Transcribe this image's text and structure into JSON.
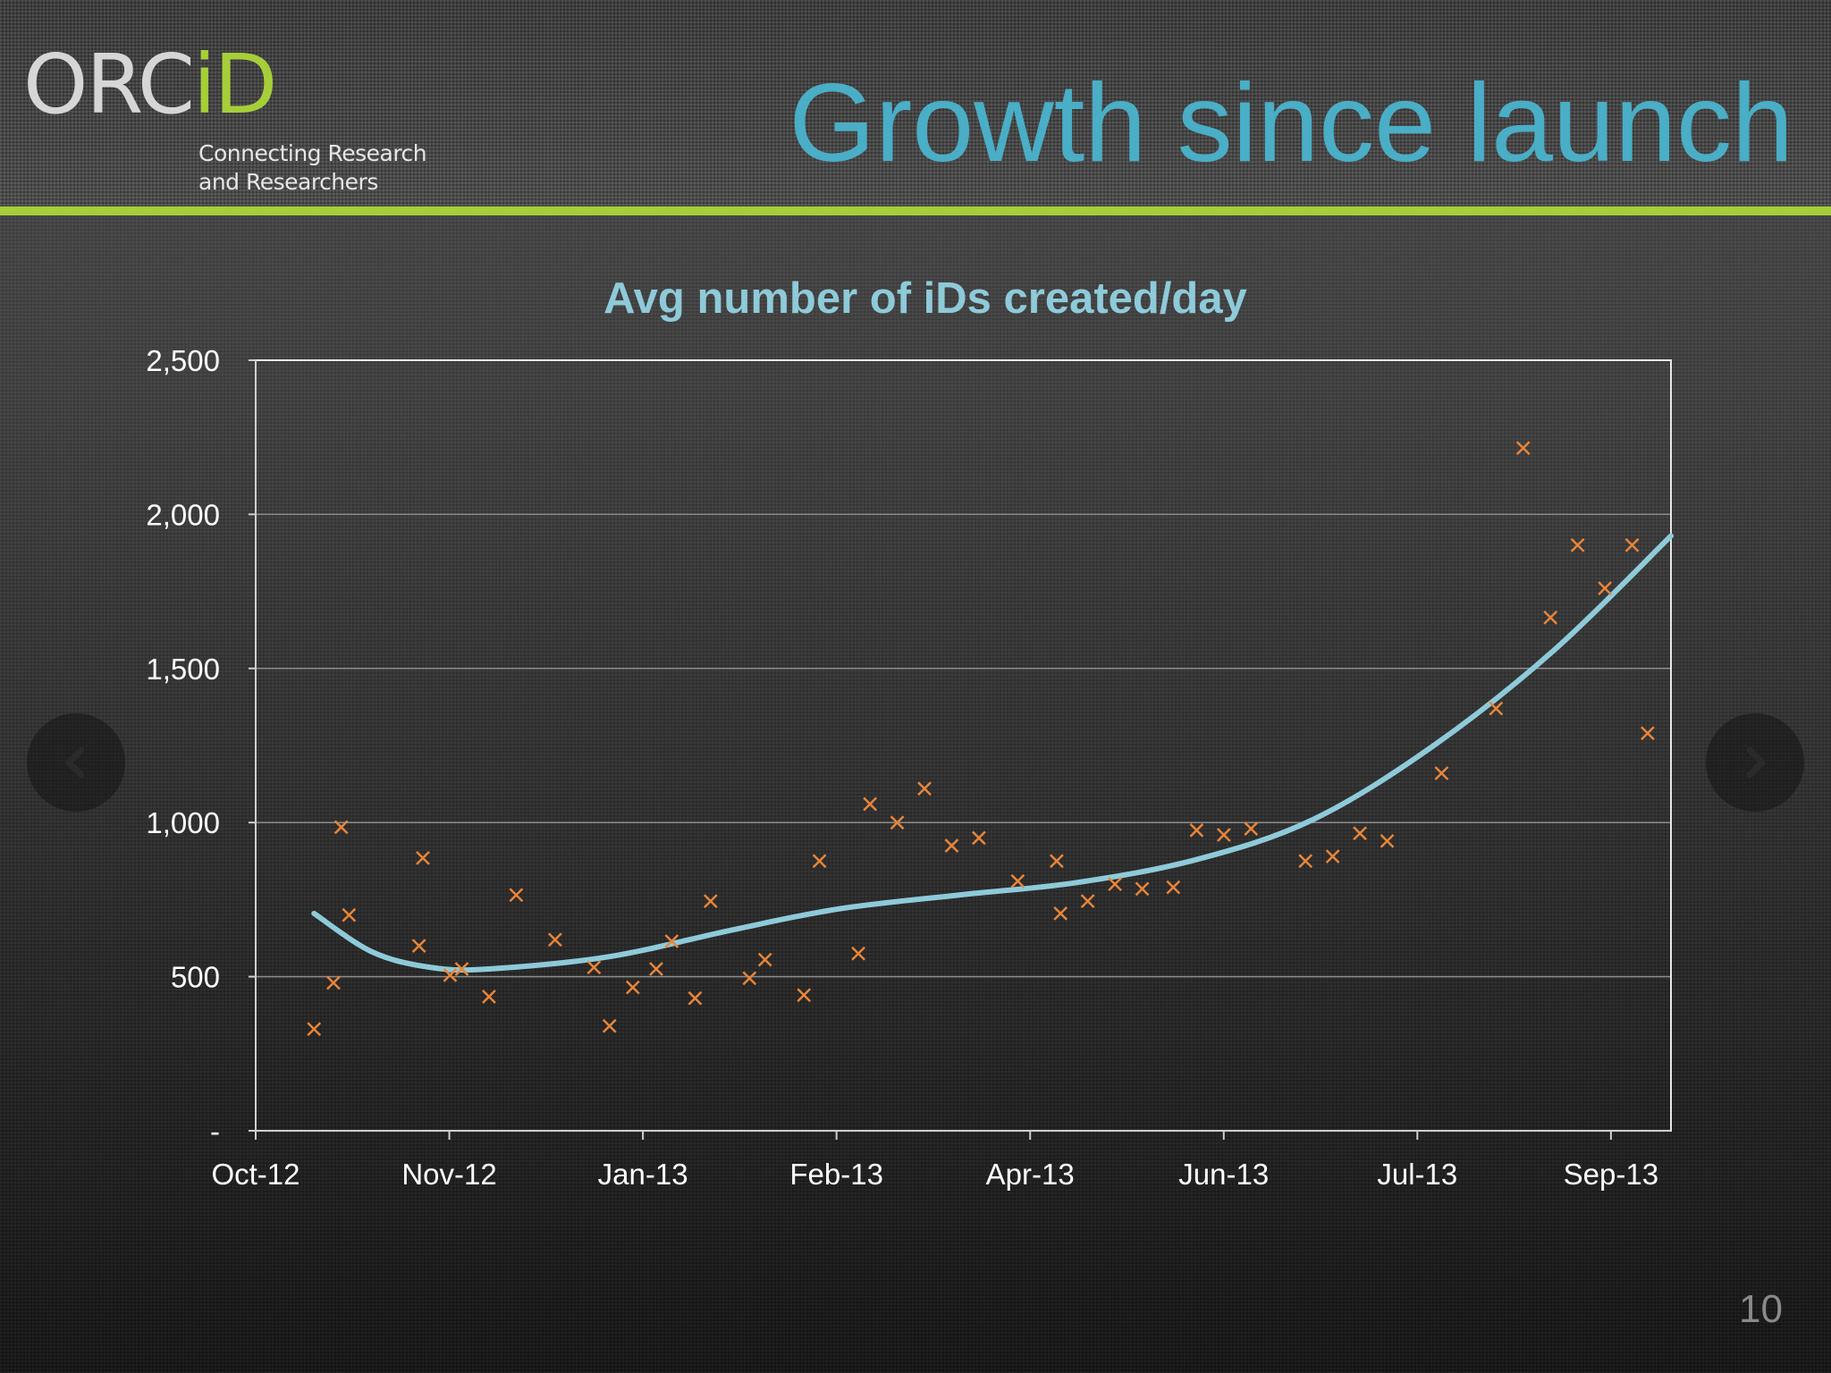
{
  "slide": {
    "title": "Growth since launch",
    "page_number": "10"
  },
  "logo": {
    "wordmark_orc": "ORC",
    "wordmark_id": "iD",
    "tagline_line1": "Connecting Research",
    "tagline_line2": "and Researchers"
  },
  "colors": {
    "title": "#49aec6",
    "accent_green": "#a6ce39",
    "trendline": "#8ecad9",
    "markers": "#e8853a"
  },
  "navigation": {
    "prev_icon": "chevron-left-icon",
    "next_icon": "chevron-right-icon"
  },
  "chart_data": {
    "type": "scatter",
    "title": "Avg number of iDs created/day",
    "xlabel": "",
    "ylabel": "",
    "x_ticks": [
      "Oct-12",
      "Nov-12",
      "Jan-13",
      "Feb-13",
      "Apr-13",
      "Jun-13",
      "Jul-13",
      "Sep-13"
    ],
    "xlim": [
      "2012-10-01",
      "2013-09-30"
    ],
    "ylim": [
      0,
      2500
    ],
    "y_ticks": [
      {
        "value": 0,
        "label": "-"
      },
      {
        "value": 500,
        "label": "500"
      },
      {
        "value": 1000,
        "label": "1,000"
      },
      {
        "value": 1500,
        "label": "1,500"
      },
      {
        "value": 2000,
        "label": "2,000"
      },
      {
        "value": 2500,
        "label": "2,500"
      }
    ],
    "grid": true,
    "legend": "none",
    "series": [
      {
        "marker": "x",
        "points": [
          {
            "x": "2012-10-16",
            "y": 330
          },
          {
            "x": "2012-10-21",
            "y": 480
          },
          {
            "x": "2012-10-23",
            "y": 985
          },
          {
            "x": "2012-10-25",
            "y": 700
          },
          {
            "x": "2012-11-12",
            "y": 600
          },
          {
            "x": "2012-11-13",
            "y": 885
          },
          {
            "x": "2012-11-20",
            "y": 505
          },
          {
            "x": "2012-11-23",
            "y": 525
          },
          {
            "x": "2012-11-30",
            "y": 435
          },
          {
            "x": "2012-12-07",
            "y": 765
          },
          {
            "x": "2012-12-17",
            "y": 620
          },
          {
            "x": "2012-12-27",
            "y": 530
          },
          {
            "x": "2012-12-31",
            "y": 340
          },
          {
            "x": "2013-01-06",
            "y": 465
          },
          {
            "x": "2013-01-12",
            "y": 525
          },
          {
            "x": "2013-01-16",
            "y": 615
          },
          {
            "x": "2013-01-22",
            "y": 430
          },
          {
            "x": "2013-01-26",
            "y": 745
          },
          {
            "x": "2013-02-05",
            "y": 495
          },
          {
            "x": "2013-02-09",
            "y": 555
          },
          {
            "x": "2013-02-19",
            "y": 440
          },
          {
            "x": "2013-02-23",
            "y": 875
          },
          {
            "x": "2013-03-05",
            "y": 575
          },
          {
            "x": "2013-03-08",
            "y": 1060
          },
          {
            "x": "2013-03-15",
            "y": 1000
          },
          {
            "x": "2013-03-22",
            "y": 1110
          },
          {
            "x": "2013-03-29",
            "y": 925
          },
          {
            "x": "2013-04-05",
            "y": 950
          },
          {
            "x": "2013-04-15",
            "y": 810
          },
          {
            "x": "2013-04-25",
            "y": 875
          },
          {
            "x": "2013-04-26",
            "y": 705
          },
          {
            "x": "2013-05-03",
            "y": 745
          },
          {
            "x": "2013-05-10",
            "y": 800
          },
          {
            "x": "2013-05-17",
            "y": 785
          },
          {
            "x": "2013-05-25",
            "y": 790
          },
          {
            "x": "2013-05-31",
            "y": 975
          },
          {
            "x": "2013-06-07",
            "y": 960
          },
          {
            "x": "2013-06-14",
            "y": 980
          },
          {
            "x": "2013-06-28",
            "y": 875
          },
          {
            "x": "2013-07-05",
            "y": 890
          },
          {
            "x": "2013-07-12",
            "y": 965
          },
          {
            "x": "2013-07-19",
            "y": 940
          },
          {
            "x": "2013-08-02",
            "y": 1160
          },
          {
            "x": "2013-08-16",
            "y": 1370
          },
          {
            "x": "2013-08-23",
            "y": 2215
          },
          {
            "x": "2013-08-30",
            "y": 1665
          },
          {
            "x": "2013-09-06",
            "y": 1900
          },
          {
            "x": "2013-09-13",
            "y": 1760
          },
          {
            "x": "2013-09-20",
            "y": 1900
          },
          {
            "x": "2013-09-24",
            "y": 1290
          }
        ]
      },
      {
        "type": "line",
        "smooth": true,
        "points": [
          {
            "x": "2012-10-16",
            "y": 705
          },
          {
            "x": "2012-10-31",
            "y": 580
          },
          {
            "x": "2012-11-15",
            "y": 530
          },
          {
            "x": "2012-11-30",
            "y": 525
          },
          {
            "x": "2012-12-31",
            "y": 565
          },
          {
            "x": "2013-01-31",
            "y": 650
          },
          {
            "x": "2013-02-28",
            "y": 720
          },
          {
            "x": "2013-03-31",
            "y": 765
          },
          {
            "x": "2013-04-30",
            "y": 805
          },
          {
            "x": "2013-05-31",
            "y": 880
          },
          {
            "x": "2013-06-30",
            "y": 1010
          },
          {
            "x": "2013-07-31",
            "y": 1250
          },
          {
            "x": "2013-08-31",
            "y": 1560
          },
          {
            "x": "2013-09-30",
            "y": 1930
          }
        ]
      }
    ]
  }
}
